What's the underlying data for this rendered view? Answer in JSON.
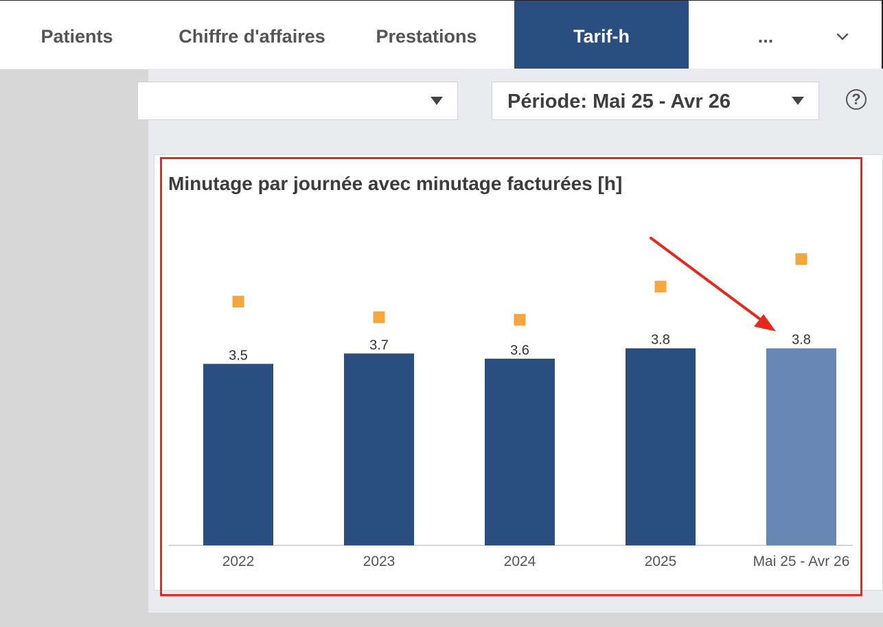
{
  "tabs": [
    {
      "label": "Patients",
      "active": false
    },
    {
      "label": "Chiffre d'affaires",
      "active": false
    },
    {
      "label": "Prestations",
      "active": false
    },
    {
      "label": "Tarif-h",
      "active": true
    },
    {
      "label": "...",
      "active": false
    }
  ],
  "tabs_expand_icon": "chevron-down-icon",
  "filters": {
    "first_dropdown_value": "",
    "period_dropdown_value": "Période: Mai 25 - Avr 26"
  },
  "help_icon": {
    "name": "help-icon",
    "glyph": "?"
  },
  "chart_data": {
    "type": "bar",
    "title": "Minutage par journée avec minutage facturées [h]",
    "categories": [
      "2022",
      "2023",
      "2024",
      "2025",
      "Mai 25 - Avr 26"
    ],
    "series": [
      {
        "values": [
          3.5,
          3.7,
          3.6,
          3.8,
          3.8
        ],
        "labels": [
          "3.5",
          "3.7",
          "3.6",
          "3.8",
          "3.8"
        ],
        "color": "#2a4e80",
        "highlight_color": "#6688b3"
      },
      {
        "type": "marker",
        "values": [
          4.7,
          4.4,
          4.35,
          4.99,
          5.52
        ],
        "color": "#f5a73b"
      }
    ],
    "ylim": [
      0,
      7
    ],
    "xlabel": "",
    "ylabel": "",
    "grid": false,
    "legend": "none"
  },
  "annotation": {
    "color": "#e8281a"
  }
}
